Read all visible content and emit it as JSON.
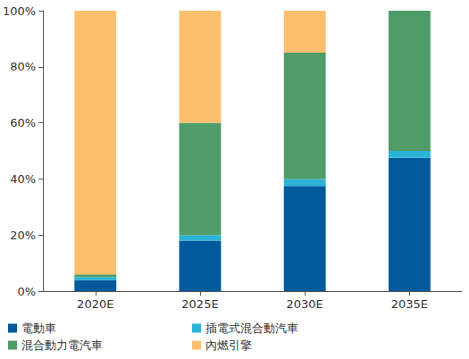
{
  "chart_data": {
    "type": "bar",
    "stacked": true,
    "categories": [
      "2020E",
      "2025E",
      "2030E",
      "2035E"
    ],
    "series": [
      {
        "name": "電動車",
        "color": "#005a9c",
        "values": [
          4,
          18,
          37.5,
          47.5
        ]
      },
      {
        "name": "插電式混合動汽車",
        "color": "#2bb3d9",
        "values": [
          1,
          2,
          2.5,
          2.5
        ]
      },
      {
        "name": "混合動力電汽車",
        "color": "#4e9c68",
        "values": [
          1,
          40,
          45,
          50
        ]
      },
      {
        "name": "內燃引擎",
        "color": "#fbbf6e",
        "values": [
          94,
          40,
          15,
          0
        ]
      }
    ],
    "ylim": [
      0,
      100
    ],
    "yticks": [
      {
        "value": 0,
        "label": "0%"
      },
      {
        "value": 20,
        "label": "20%"
      },
      {
        "value": 40,
        "label": "40%"
      },
      {
        "value": 60,
        "label": "60%"
      },
      {
        "value": 80,
        "label": "80%"
      },
      {
        "value": 100,
        "label": "100%"
      }
    ],
    "grid": false,
    "legend": "bottom"
  }
}
